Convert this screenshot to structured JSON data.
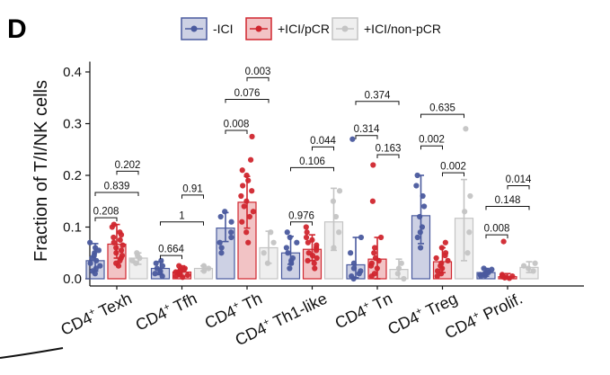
{
  "panel_label": "D",
  "colors": {
    "-ICI": "#4a5a9e",
    "+ICI/pCR": "#d0262e",
    "+ICI/non-pCR": "#c4c4c4"
  },
  "chart_data": {
    "type": "bar",
    "title": "",
    "ylabel": "Fraction of T/I/NK cells",
    "xlabel": "",
    "ylim": [
      0,
      0.42
    ],
    "yticks": [
      "0.0",
      "0.1",
      "0.2",
      "0.3",
      "0.4"
    ],
    "ytick_values": [
      0,
      0.1,
      0.2,
      0.3,
      0.4
    ],
    "grid": false,
    "legend_position": "top",
    "categories": [
      {
        "pre": "CD4",
        "sup": "+",
        "post": " Texh"
      },
      {
        "pre": "CD4",
        "sup": "+",
        "post": " Tfh"
      },
      {
        "pre": "CD4",
        "sup": "+",
        "post": " Th"
      },
      {
        "pre": "CD4",
        "sup": "+",
        "post": " Th1-like"
      },
      {
        "pre": "CD4",
        "sup": "+",
        "post": " Tn"
      },
      {
        "pre": "CD4",
        "sup": "+",
        "post": " Treg"
      },
      {
        "pre": "CD4",
        "sup": "+",
        "post": " Prolif."
      }
    ],
    "series": [
      {
        "name": "-ICI",
        "values": [
          0.035,
          0.02,
          0.098,
          0.05,
          0.027,
          0.122,
          0.012
        ],
        "error": [
          [
            0.015,
            0.068
          ],
          [
            0.008,
            0.033
          ],
          [
            0.072,
            0.128
          ],
          [
            0.028,
            0.082
          ],
          [
            0.002,
            0.08
          ],
          [
            0.068,
            0.2
          ],
          [
            0.005,
            0.02
          ]
        ],
        "points": [
          [
            0.01,
            0.02,
            0.03,
            0.04,
            0.05,
            0.06,
            0.07,
            0.025,
            0.035,
            0.045,
            0.015,
            0.055
          ],
          [
            0.005,
            0.01,
            0.015,
            0.02,
            0.025,
            0.03,
            0.035,
            0.012
          ],
          [
            0.05,
            0.07,
            0.09,
            0.11,
            0.12,
            0.13,
            0.08,
            0.06
          ],
          [
            0.02,
            0.03,
            0.04,
            0.05,
            0.06,
            0.07,
            0.08,
            0.09,
            0.035
          ],
          [
            0.0,
            0.005,
            0.01,
            0.02,
            0.03,
            0.05,
            0.08,
            0.27,
            0.015
          ],
          [
            0.06,
            0.08,
            0.1,
            0.12,
            0.14,
            0.16,
            0.18,
            0.2,
            0.09
          ],
          [
            0.005,
            0.008,
            0.01,
            0.012,
            0.015,
            0.018,
            0.02,
            0.006,
            0.011
          ]
        ]
      },
      {
        "name": "+ICI/pCR",
        "values": [
          0.067,
          0.013,
          0.148,
          0.057,
          0.038,
          0.033,
          0.004
        ],
        "error": [
          [
            0.04,
            0.105
          ],
          [
            0.005,
            0.025
          ],
          [
            0.098,
            0.198
          ],
          [
            0.035,
            0.085
          ],
          [
            0.0,
            0.08
          ],
          [
            0.012,
            0.06
          ],
          [
            0.001,
            0.01
          ]
        ],
        "points": [
          [
            0.03,
            0.04,
            0.05,
            0.06,
            0.07,
            0.08,
            0.09,
            0.1,
            0.105,
            0.075,
            0.085,
            0.065,
            0.045,
            0.055,
            0.035,
            0.025
          ],
          [
            0.003,
            0.005,
            0.008,
            0.01,
            0.012,
            0.015,
            0.018,
            0.02,
            0.025,
            0.007,
            0.013,
            0.017
          ],
          [
            0.07,
            0.09,
            0.11,
            0.13,
            0.15,
            0.17,
            0.19,
            0.2,
            0.21,
            0.23,
            0.275,
            0.14,
            0.16,
            0.18,
            0.12
          ],
          [
            0.02,
            0.03,
            0.04,
            0.05,
            0.06,
            0.07,
            0.08,
            0.09,
            0.1,
            0.045,
            0.055,
            0.065,
            0.035,
            0.075
          ],
          [
            0.005,
            0.01,
            0.02,
            0.03,
            0.04,
            0.05,
            0.06,
            0.08,
            0.15,
            0.22,
            0.025,
            0.035
          ],
          [
            0.005,
            0.01,
            0.015,
            0.02,
            0.03,
            0.04,
            0.05,
            0.06,
            0.07,
            0.025,
            0.035,
            0.045
          ],
          [
            0.001,
            0.002,
            0.003,
            0.004,
            0.005,
            0.006,
            0.008,
            0.072
          ]
        ]
      },
      {
        "name": "+ICI/non-pCR",
        "values": [
          0.04,
          0.02,
          0.06,
          0.11,
          0.018,
          0.117,
          0.022
        ],
        "error": [
          [
            0.028,
            0.05
          ],
          [
            0.015,
            0.025
          ],
          [
            0.03,
            0.092
          ],
          [
            0.055,
            0.175
          ],
          [
            0.0,
            0.038
          ],
          [
            0.035,
            0.192
          ],
          [
            0.012,
            0.033
          ]
        ],
        "points": [
          [
            0.03,
            0.035,
            0.04,
            0.045,
            0.05
          ],
          [
            0.015,
            0.02,
            0.025
          ],
          [
            0.03,
            0.05,
            0.07,
            0.09
          ],
          [
            0.06,
            0.09,
            0.12,
            0.15,
            0.17
          ],
          [
            0.0,
            0.01,
            0.02,
            0.03
          ],
          [
            0.05,
            0.09,
            0.13,
            0.16,
            0.29
          ],
          [
            0.015,
            0.02,
            0.025,
            0.03
          ]
        ]
      }
    ],
    "annotations": [
      {
        "category": 0,
        "from": 0,
        "to": 1,
        "y": 0.118,
        "label": "0.208"
      },
      {
        "category": 0,
        "from": 0,
        "to": 2,
        "y": 0.167,
        "label": "0.839"
      },
      {
        "category": 0,
        "from": 1,
        "to": 2,
        "y": 0.208,
        "label": "0.202"
      },
      {
        "category": 1,
        "from": 0,
        "to": 1,
        "y": 0.045,
        "label": "0.664"
      },
      {
        "category": 1,
        "from": 0,
        "to": 2,
        "y": 0.11,
        "label": "1"
      },
      {
        "category": 1,
        "from": 1,
        "to": 2,
        "y": 0.162,
        "label": "0.91"
      },
      {
        "category": 2,
        "from": 0,
        "to": 1,
        "y": 0.287,
        "label": "0.008"
      },
      {
        "category": 2,
        "from": 0,
        "to": 2,
        "y": 0.347,
        "label": "0.076"
      },
      {
        "category": 2,
        "from": 1,
        "to": 2,
        "y": 0.389,
        "label": "0.003"
      },
      {
        "category": 3,
        "from": 0,
        "to": 1,
        "y": 0.11,
        "label": "0.976"
      },
      {
        "category": 3,
        "from": 0,
        "to": 2,
        "y": 0.215,
        "label": "0.106"
      },
      {
        "category": 3,
        "from": 1,
        "to": 2,
        "y": 0.255,
        "label": "0.044"
      },
      {
        "category": 4,
        "from": 0,
        "to": 1,
        "y": 0.277,
        "label": "0.314"
      },
      {
        "category": 4,
        "from": 0,
        "to": 2,
        "y": 0.343,
        "label": "0.374"
      },
      {
        "category": 4,
        "from": 1,
        "to": 2,
        "y": 0.24,
        "label": "0.163"
      },
      {
        "category": 5,
        "from": 0,
        "to": 1,
        "y": 0.257,
        "label": "0.002"
      },
      {
        "category": 5,
        "from": 0,
        "to": 2,
        "y": 0.318,
        "label": "0.635"
      },
      {
        "category": 5,
        "from": 1,
        "to": 2,
        "y": 0.205,
        "label": "0.002"
      },
      {
        "category": 6,
        "from": 0,
        "to": 1,
        "y": 0.085,
        "label": "0.008"
      },
      {
        "category": 6,
        "from": 0,
        "to": 2,
        "y": 0.14,
        "label": "0.148"
      },
      {
        "category": 6,
        "from": 1,
        "to": 2,
        "y": 0.18,
        "label": "0.014"
      }
    ]
  }
}
